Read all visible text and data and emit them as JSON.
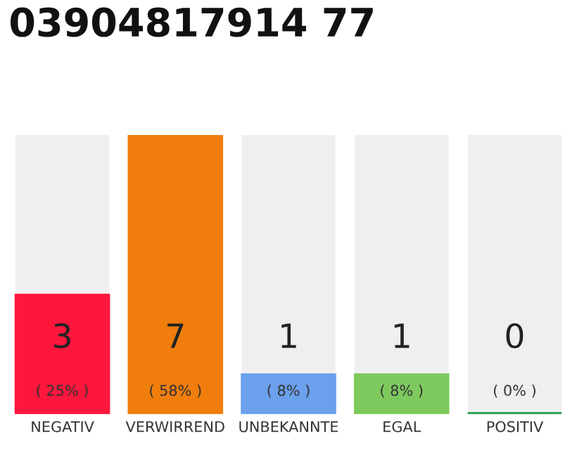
{
  "chart_data": {
    "type": "bar",
    "title": "03904817914 77",
    "categories": [
      "NEGATIV",
      "VERWIRREND",
      "UNBEKANNTE",
      "EGAL",
      "POSITIV"
    ],
    "values": [
      3,
      7,
      1,
      1,
      0
    ],
    "colors": [
      "#ff163d",
      "#f07d0c",
      "#6aa0ec",
      "#7dc95e",
      "#2aa350"
    ],
    "value_labels": [
      "3\n( 25% )",
      "7\n( 58% )",
      "1\n( 8% )",
      "1\n( 8% )",
      "0\n( 0% )"
    ],
    "ylim": [
      0,
      7
    ],
    "tick_labels": "x",
    "grid": false,
    "legend": false
  }
}
